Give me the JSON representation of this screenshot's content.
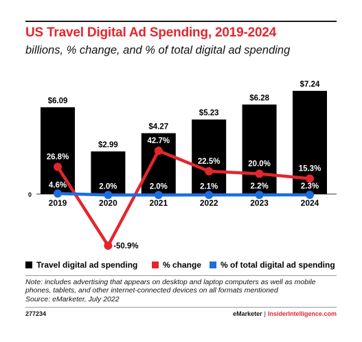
{
  "header": {
    "title": "US Travel Digital Ad Spending, 2019-2024",
    "subtitle": "billions, % change, and % of total digital ad spending"
  },
  "chart_data": {
    "type": "bar",
    "categories": [
      "2019",
      "2020",
      "2021",
      "2022",
      "2023",
      "2024"
    ],
    "series": [
      {
        "name": "Travel digital ad spending",
        "type": "bar",
        "color": "#000000",
        "values": [
          6.09,
          2.99,
          4.27,
          5.23,
          6.28,
          7.24
        ],
        "labels": [
          "$6.09",
          "$2.99",
          "$4.27",
          "$5.23",
          "$6.28",
          "$7.24"
        ]
      },
      {
        "name": "% change",
        "type": "line",
        "color": "#e3262e",
        "values": [
          26.8,
          -50.9,
          42.7,
          22.5,
          20.0,
          15.3
        ],
        "labels": [
          "26.8%",
          "-50.9%",
          "42.7%",
          "22.5%",
          "20.0%",
          "15.3%"
        ]
      },
      {
        "name": "% of total digital ad spending",
        "type": "line",
        "color": "#1a6fe0",
        "values": [
          4.6,
          2.0,
          2.0,
          2.1,
          2.2,
          2.3
        ],
        "labels": [
          "4.6%",
          "2.0%",
          "2.0%",
          "2.1%",
          "2.2%",
          "2.3%"
        ]
      }
    ],
    "zero_label": "0",
    "ylim_bars": [
      0,
      7.24
    ],
    "ylim_lines": [
      -50.9,
      42.7
    ],
    "grid": false,
    "legend_position": "bottom"
  },
  "legend": [
    {
      "label": "Travel digital ad spending",
      "color": "#000000"
    },
    {
      "label": "% change",
      "color": "#e3262e"
    },
    {
      "label": "% of total digital ad spending",
      "color": "#1a6fe0"
    }
  ],
  "note": {
    "text": "Note: includes advertising that appears on desktop and laptop computers as well as mobile phones, tablets, and other internet-connected devices on all formats mentioned",
    "source": "Source: eMarketer, July 2022"
  },
  "footer": {
    "id": "277234",
    "brand": "eMarketer",
    "separator": "|",
    "site": "InsiderIntelligence.com"
  }
}
